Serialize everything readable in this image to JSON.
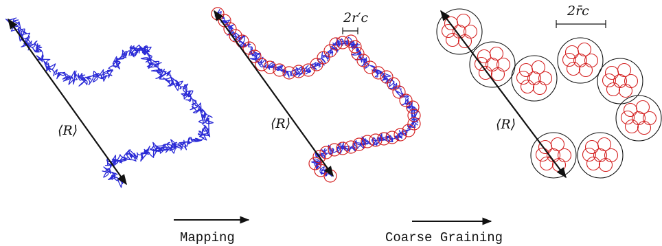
{
  "panels": [
    {
      "name": "polymer-chain",
      "label": "⟨R⟩"
    },
    {
      "name": "mapped-chain",
      "label": "⟨R⟩",
      "dimension_label": "2r′c"
    },
    {
      "name": "coarse-grained-chain",
      "label": "⟨R⟩",
      "dimension_label": "2r̄c"
    }
  ],
  "steps": [
    {
      "label": "Mapping"
    },
    {
      "label": "Coarse Graining"
    }
  ],
  "colors": {
    "chain": "#2a2ad6",
    "small_blob": "#d42020",
    "large_blob": "#111111",
    "arrow": "#111111"
  }
}
